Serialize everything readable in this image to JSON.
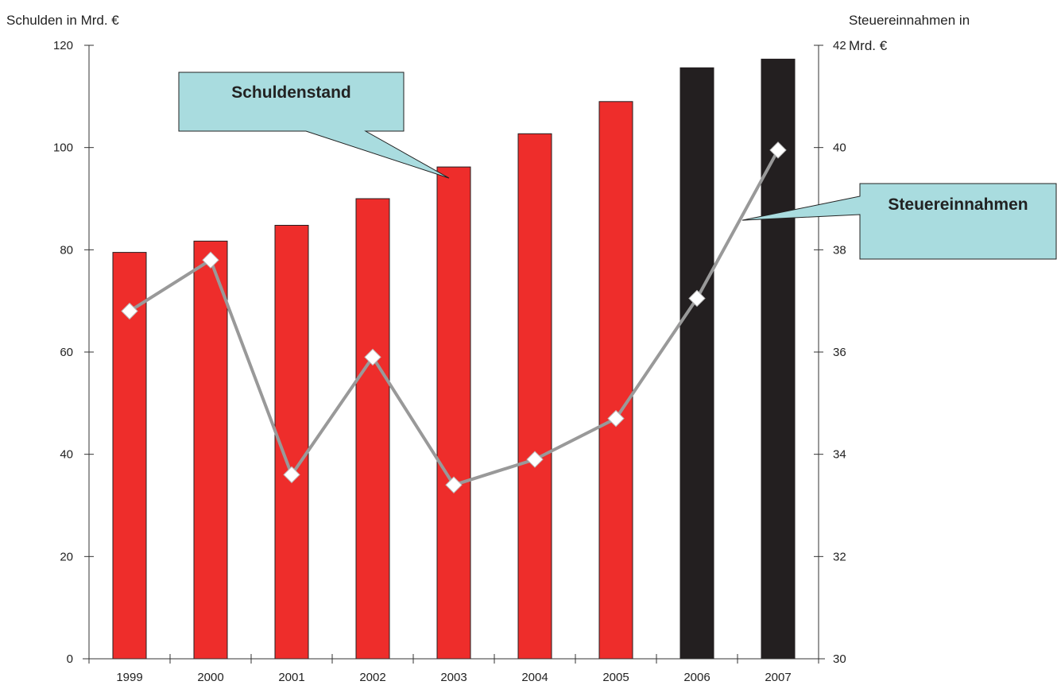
{
  "chart_data": {
    "type": "bar",
    "categories": [
      "1999",
      "2000",
      "2001",
      "2002",
      "2003",
      "2004",
      "2005",
      "2006",
      "2007"
    ],
    "series": [
      {
        "name": "Schuldenstand",
        "type": "bar",
        "axis": "left",
        "values": [
          79.5,
          81.7,
          84.8,
          90.0,
          96.2,
          102.7,
          109.0,
          115.6,
          117.3
        ],
        "colors": [
          "#ee2d2b",
          "#ee2d2b",
          "#ee2d2b",
          "#ee2d2b",
          "#ee2d2b",
          "#ee2d2b",
          "#ee2d2b",
          "#231f20",
          "#231f20"
        ]
      },
      {
        "name": "Steuereinnahmen",
        "type": "line",
        "axis": "right",
        "values": [
          36.8,
          37.8,
          33.6,
          35.9,
          33.4,
          33.9,
          34.7,
          37.05,
          39.95
        ],
        "color": "#999999",
        "marker": "diamond",
        "marker_color": "#ffffff"
      }
    ],
    "ylabel_left": "Schulden in Mrd. €",
    "ylabel_right": [
      "Steuereinnahmen in",
      "Mrd. €"
    ],
    "ylim_left": [
      0,
      120
    ],
    "yticks_left": [
      "0",
      "20",
      "40",
      "60",
      "80",
      "100",
      "120"
    ],
    "ylim_right": [
      30,
      42
    ],
    "yticks_right": [
      "30",
      "32",
      "34",
      "36",
      "38",
      "40",
      "42"
    ],
    "grid": false,
    "annotations": [
      {
        "text": "Schuldenstand",
        "target_series": "Schuldenstand",
        "target_category": "2003",
        "fill": "#a9dcdf"
      },
      {
        "text": "Steuereinnahmen",
        "target_series": "Steuereinnahmen",
        "target_category": "2007",
        "fill": "#a9dcdf"
      }
    ]
  }
}
